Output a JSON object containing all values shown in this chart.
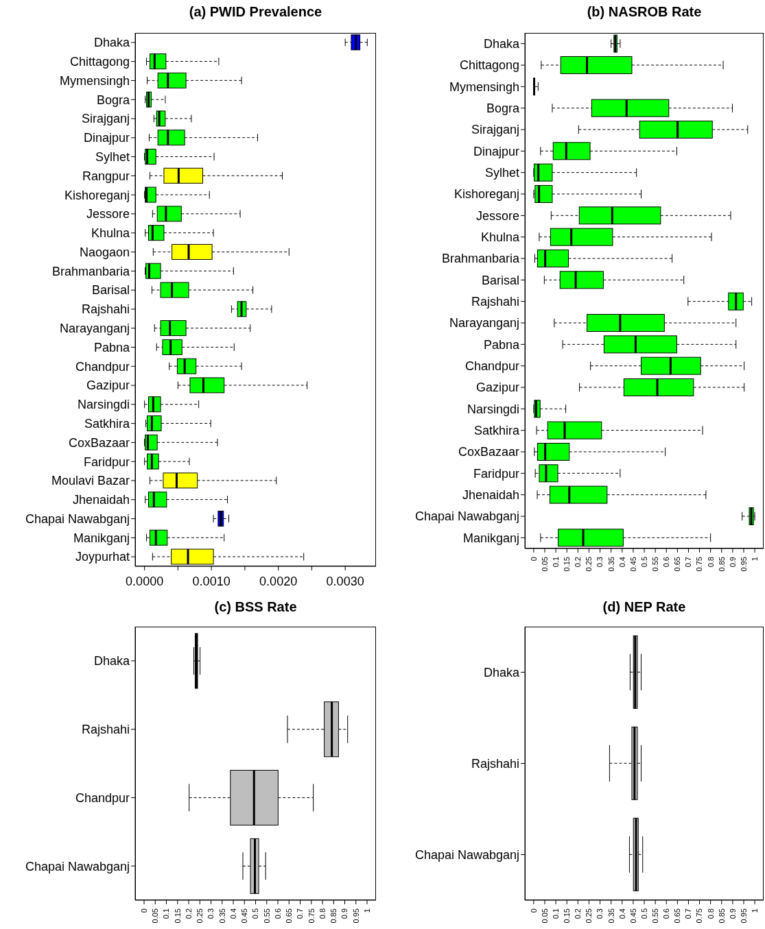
{
  "chart_data": [
    {
      "type": "box",
      "orientation": "horizontal",
      "title": "(a) PWID Prevalence",
      "categories": [
        "Dhaka",
        "Chittagong",
        "Mymensingh",
        "Bogra",
        "Sirajganj",
        "Dinajpur",
        "Sylhet",
        "Rangpur",
        "Kishoreganj",
        "Jessore",
        "Khulna",
        "Naogaon",
        "Brahmanbaria",
        "Barisal",
        "Rajshahi",
        "Narayanganj",
        "Pabna",
        "Chandpur",
        "Gazipur",
        "Narsingdi",
        "Satkhira",
        "CoxBazaar",
        "Faridpur",
        "Moulavi Bazar",
        "Jhenaidah",
        "Chapai Nawabganj",
        "Manikganj",
        "Joypurhat"
      ],
      "boxes": [
        {
          "low": 0.003,
          "q1": 0.00309,
          "median": 0.00316,
          "q3": 0.00322,
          "high": 0.00333
        },
        {
          "low": 3e-05,
          "q1": 8e-05,
          "median": 0.00015,
          "q3": 0.00032,
          "high": 0.00111
        },
        {
          "low": 4e-05,
          "q1": 0.0002,
          "median": 0.00035,
          "q3": 0.00062,
          "high": 0.00145
        },
        {
          "low": 1e-05,
          "q1": 3e-05,
          "median": 6e-05,
          "q3": 0.0001,
          "high": 0.00031
        },
        {
          "low": 0.00014,
          "q1": 0.00018,
          "median": 0.00022,
          "q3": 0.00031,
          "high": 0.0007
        },
        {
          "low": 7e-05,
          "q1": 0.0002,
          "median": 0.00035,
          "q3": 0.0006,
          "high": 0.00169
        },
        {
          "low": 0.0,
          "q1": 1e-05,
          "median": 4e-05,
          "q3": 0.00017,
          "high": 0.00104
        },
        {
          "low": 8e-05,
          "q1": 0.00029,
          "median": 0.00051,
          "q3": 0.00087,
          "high": 0.00206
        },
        {
          "low": 0.0,
          "q1": 1e-05,
          "median": 3e-05,
          "q3": 0.00017,
          "high": 0.00097
        },
        {
          "low": 0.00012,
          "q1": 0.00019,
          "median": 0.00032,
          "q3": 0.00055,
          "high": 0.00143
        },
        {
          "low": 1e-05,
          "q1": 6e-05,
          "median": 0.00012,
          "q3": 0.00029,
          "high": 0.00103
        },
        {
          "low": 0.00013,
          "q1": 0.00041,
          "median": 0.00066,
          "q3": 0.00101,
          "high": 0.00216
        },
        {
          "low": 1e-05,
          "q1": 2e-05,
          "median": 7e-05,
          "q3": 0.00024,
          "high": 0.00133
        },
        {
          "low": 0.00011,
          "q1": 0.00024,
          "median": 0.00041,
          "q3": 0.00066,
          "high": 0.00162
        },
        {
          "low": 0.0013,
          "q1": 0.00139,
          "median": 0.00145,
          "q3": 0.00152,
          "high": 0.0019
        },
        {
          "low": 0.00015,
          "q1": 0.00024,
          "median": 0.00038,
          "q3": 0.00062,
          "high": 0.00158
        },
        {
          "low": 0.00018,
          "q1": 0.00027,
          "median": 0.00039,
          "q3": 0.00056,
          "high": 0.00134
        },
        {
          "low": 0.00037,
          "q1": 0.00049,
          "median": 0.0006,
          "q3": 0.00077,
          "high": 0.00145
        },
        {
          "low": 0.0005,
          "q1": 0.00068,
          "median": 0.00088,
          "q3": 0.00119,
          "high": 0.00243
        },
        {
          "low": 0.0,
          "q1": 6e-05,
          "median": 0.00013,
          "q3": 0.00024,
          "high": 0.00081
        },
        {
          "low": 2e-05,
          "q1": 4e-05,
          "median": 0.00011,
          "q3": 0.00025,
          "high": 0.00099
        },
        {
          "low": 0.0,
          "q1": 1e-05,
          "median": 5e-05,
          "q3": 0.00019,
          "high": 0.00109
        },
        {
          "low": 0.0,
          "q1": 4e-05,
          "median": 0.00011,
          "q3": 0.00021,
          "high": 0.00067
        },
        {
          "low": 8e-05,
          "q1": 0.00028,
          "median": 0.00048,
          "q3": 0.00079,
          "high": 0.00197
        },
        {
          "low": 1e-05,
          "q1": 6e-05,
          "median": 0.00014,
          "q3": 0.00033,
          "high": 0.00124
        },
        {
          "low": 0.00103,
          "q1": 0.0011,
          "median": 0.00114,
          "q3": 0.00118,
          "high": 0.00126
        },
        {
          "low": 3e-05,
          "q1": 8e-05,
          "median": 0.00017,
          "q3": 0.00034,
          "high": 0.00119
        },
        {
          "low": 0.00012,
          "q1": 0.0004,
          "median": 0.00065,
          "q3": 0.00103,
          "high": 0.00238
        }
      ],
      "colors": [
        "#0000ff",
        "#00ff00",
        "#00ff00",
        "#00ff00",
        "#00ff00",
        "#00ff00",
        "#00ff00",
        "#ffff00",
        "#00ff00",
        "#00ff00",
        "#00ff00",
        "#ffff00",
        "#00ff00",
        "#00ff00",
        "#00ff00",
        "#00ff00",
        "#00ff00",
        "#00ff00",
        "#00ff00",
        "#00ff00",
        "#00ff00",
        "#00ff00",
        "#00ff00",
        "#ffff00",
        "#00ff00",
        "#0000ff",
        "#00ff00",
        "#ffff00"
      ],
      "xlim": [
        -0.00014,
        0.00346
      ],
      "xticks": [
        {
          "value": 0,
          "label": "0.0000"
        },
        {
          "value": 0.0005,
          "label": null
        },
        {
          "value": 0.001,
          "label": "0.0010"
        },
        {
          "value": 0.0015,
          "label": null
        },
        {
          "value": 0.002,
          "label": "0.0020"
        },
        {
          "value": 0.0025,
          "label": null
        },
        {
          "value": 0.003,
          "label": "0.0030"
        }
      ]
    },
    {
      "type": "box",
      "orientation": "horizontal",
      "title": "(b) NASROB Rate",
      "categories": [
        "Dhaka",
        "Chittagong",
        "Mymensingh",
        "Bogra",
        "Sirajganj",
        "Dinajpur",
        "Sylhet",
        "Kishoreganj",
        "Jessore",
        "Khulna",
        "Brahmanbaria",
        "Barisal",
        "Rajshahi",
        "Narayanganj",
        "Pabna",
        "Chandpur",
        "Gazipur",
        "Narsingdi",
        "Satkhira",
        "CoxBazaar",
        "Faridpur",
        "Jhenaidah",
        "Chapai Nawabganj",
        "Manikganj"
      ],
      "boxes": [
        {
          "low": 0.35,
          "q1": 0.363,
          "median": 0.369,
          "q3": 0.377,
          "high": 0.391
        },
        {
          "low": 0.034,
          "q1": 0.122,
          "median": 0.241,
          "q3": 0.444,
          "high": 0.857
        },
        {
          "low": 0.0,
          "q1": 0.0,
          "median": 0.002,
          "q3": 0.005,
          "high": 0.02
        },
        {
          "low": 0.084,
          "q1": 0.262,
          "median": 0.42,
          "q3": 0.611,
          "high": 0.899
        },
        {
          "low": 0.203,
          "q1": 0.479,
          "median": 0.651,
          "q3": 0.808,
          "high": 0.968
        },
        {
          "low": 0.031,
          "q1": 0.088,
          "median": 0.147,
          "q3": 0.255,
          "high": 0.647
        },
        {
          "low": 0.0,
          "q1": 0.002,
          "median": 0.021,
          "q3": 0.084,
          "high": 0.465
        },
        {
          "low": 0.0,
          "q1": 0.006,
          "median": 0.024,
          "q3": 0.084,
          "high": 0.486
        },
        {
          "low": 0.079,
          "q1": 0.206,
          "median": 0.355,
          "q3": 0.574,
          "high": 0.891
        },
        {
          "low": 0.025,
          "q1": 0.076,
          "median": 0.17,
          "q3": 0.357,
          "high": 0.804
        },
        {
          "low": 0.005,
          "q1": 0.017,
          "median": 0.052,
          "q3": 0.157,
          "high": 0.626
        },
        {
          "low": 0.048,
          "q1": 0.119,
          "median": 0.19,
          "q3": 0.315,
          "high": 0.679
        },
        {
          "low": 0.698,
          "q1": 0.881,
          "median": 0.915,
          "q3": 0.948,
          "high": 0.986
        },
        {
          "low": 0.093,
          "q1": 0.241,
          "median": 0.391,
          "q3": 0.591,
          "high": 0.915
        },
        {
          "low": 0.131,
          "q1": 0.318,
          "median": 0.461,
          "q3": 0.647,
          "high": 0.915
        },
        {
          "low": 0.257,
          "q1": 0.486,
          "median": 0.619,
          "q3": 0.755,
          "high": 0.952
        },
        {
          "low": 0.207,
          "q1": 0.408,
          "median": 0.559,
          "q3": 0.723,
          "high": 0.952
        },
        {
          "low": 0.0,
          "q1": 0.003,
          "median": 0.011,
          "q3": 0.029,
          "high": 0.145
        },
        {
          "low": 0.013,
          "q1": 0.063,
          "median": 0.14,
          "q3": 0.307,
          "high": 0.764
        },
        {
          "low": 0.003,
          "q1": 0.017,
          "median": 0.052,
          "q3": 0.161,
          "high": 0.595
        },
        {
          "low": 0.007,
          "q1": 0.025,
          "median": 0.056,
          "q3": 0.109,
          "high": 0.391
        },
        {
          "low": 0.016,
          "q1": 0.073,
          "median": 0.161,
          "q3": 0.332,
          "high": 0.779
        },
        {
          "low": 0.943,
          "q1": 0.975,
          "median": 0.984,
          "q3": 0.994,
          "high": 1.0
        },
        {
          "low": 0.031,
          "q1": 0.111,
          "median": 0.224,
          "q3": 0.405,
          "high": 0.8
        }
      ],
      "color": "#00ff00",
      "xlim": [
        -0.04,
        1.04
      ],
      "xticks": [
        0,
        0.05,
        0.1,
        0.15,
        0.2,
        0.25,
        0.3,
        0.35,
        0.4,
        0.45,
        0.5,
        0.55,
        0.6,
        0.65,
        0.7,
        0.75,
        0.8,
        0.85,
        0.9,
        0.95,
        1
      ]
    },
    {
      "type": "box",
      "orientation": "horizontal",
      "title": "(c) BSS Rate",
      "categories": [
        "Dhaka",
        "Rajshahi",
        "Chandpur",
        "Chapai Nawabganj"
      ],
      "boxes": [
        {
          "low": 0.223,
          "q1": 0.229,
          "median": 0.235,
          "q3": 0.24,
          "high": 0.251
        },
        {
          "low": 0.643,
          "q1": 0.808,
          "median": 0.842,
          "q3": 0.872,
          "high": 0.913
        },
        {
          "low": 0.202,
          "q1": 0.387,
          "median": 0.493,
          "q3": 0.601,
          "high": 0.759
        },
        {
          "low": 0.443,
          "q1": 0.477,
          "median": 0.497,
          "q3": 0.514,
          "high": 0.545
        }
      ],
      "color": "#bebebe",
      "xlim": [
        -0.04,
        1.04
      ],
      "xticks": [
        0,
        0.05,
        0.1,
        0.15,
        0.2,
        0.25,
        0.3,
        0.35,
        0.4,
        0.45,
        0.5,
        0.55,
        0.6,
        0.65,
        0.7,
        0.75,
        0.8,
        0.85,
        0.9,
        0.95,
        1
      ]
    },
    {
      "type": "box",
      "orientation": "horizontal",
      "title": "(d) NEP Rate",
      "categories": [
        "Dhaka",
        "Rajshahi",
        "Chapai Nawabganj"
      ],
      "boxes": [
        {
          "low": 0.436,
          "q1": 0.451,
          "median": 0.459,
          "q3": 0.469,
          "high": 0.486
        },
        {
          "low": 0.343,
          "q1": 0.444,
          "median": 0.456,
          "q3": 0.469,
          "high": 0.486
        },
        {
          "low": 0.433,
          "q1": 0.451,
          "median": 0.463,
          "q3": 0.473,
          "high": 0.493
        }
      ],
      "color": "#bebebe",
      "xlim": [
        -0.04,
        1.04
      ],
      "xticks": [
        0,
        0.05,
        0.1,
        0.15,
        0.2,
        0.25,
        0.3,
        0.35,
        0.4,
        0.45,
        0.5,
        0.55,
        0.6,
        0.65,
        0.7,
        0.75,
        0.8,
        0.85,
        0.9,
        0.95,
        1
      ]
    }
  ]
}
